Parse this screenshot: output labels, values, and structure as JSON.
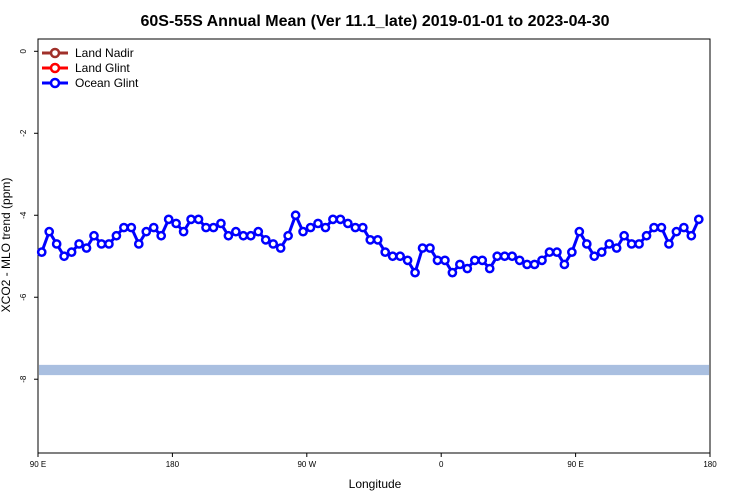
{
  "chart_data": {
    "type": "line",
    "title": "60S-55S Annual Mean (Ver 11.1_late)   2019-01-01 to 2023-04-30",
    "xlabel": "Longitude",
    "ylabel": "XCO2 - MLO trend (ppm)",
    "xlim": [
      90,
      450
    ],
    "ylim": [
      -9.8,
      0.3
    ],
    "x_ticks": [
      {
        "value": 90,
        "label": "90 E"
      },
      {
        "value": 180,
        "label": "180"
      },
      {
        "value": 270,
        "label": "90 W"
      },
      {
        "value": 360,
        "label": "0"
      },
      {
        "value": 450,
        "label": "90 E"
      },
      {
        "value": 540,
        "label": "180"
      }
    ],
    "y_ticks": [
      {
        "value": 0,
        "label": "0"
      },
      {
        "value": -2,
        "label": "-2"
      },
      {
        "value": -4,
        "label": "-4"
      },
      {
        "value": -6,
        "label": "-6"
      },
      {
        "value": -8,
        "label": "-8"
      }
    ],
    "legend_position": "top-left",
    "x_axis_end": 540,
    "band": {
      "y_min": -7.9,
      "y_max": -7.65,
      "color": "#a9bfe0"
    },
    "series": [
      {
        "name": "Land Nadir",
        "color": "#a0302a",
        "values": []
      },
      {
        "name": "Land Glint",
        "color": "#ff0000",
        "values": []
      },
      {
        "name": "Ocean Glint",
        "color": "#0000ff",
        "x_start": 92.5,
        "x_step": 5,
        "values": [
          -4.9,
          -4.4,
          -4.7,
          -5.0,
          -4.9,
          -4.7,
          -4.8,
          -4.5,
          -4.7,
          -4.7,
          -4.5,
          -4.3,
          -4.3,
          -4.7,
          -4.4,
          -4.3,
          -4.5,
          -4.1,
          -4.2,
          -4.4,
          -4.1,
          -4.1,
          -4.3,
          -4.3,
          -4.2,
          -4.5,
          -4.4,
          -4.5,
          -4.5,
          -4.4,
          -4.6,
          -4.7,
          -4.8,
          -4.5,
          -4.0,
          -4.4,
          -4.3,
          -4.2,
          -4.3,
          -4.1,
          -4.1,
          -4.2,
          -4.3,
          -4.3,
          -4.6,
          -4.6,
          -4.9,
          -5.0,
          -5.0,
          -5.1,
          -5.4,
          -4.8,
          -4.8,
          -5.1,
          -5.1,
          -5.4,
          -5.2,
          -5.3,
          -5.1,
          -5.1,
          -5.3,
          -5.0,
          -5.0,
          -5.0,
          -5.1,
          -5.2,
          -5.2,
          -5.1,
          -4.9,
          -4.9,
          -5.2,
          -4.9,
          -4.4,
          -4.7,
          -5.0,
          -4.9,
          -4.7,
          -4.8,
          -4.5,
          -4.7,
          -4.7,
          -4.5,
          -4.3,
          -4.3,
          -4.7,
          -4.4,
          -4.3,
          -4.5,
          -4.1
        ]
      }
    ]
  }
}
